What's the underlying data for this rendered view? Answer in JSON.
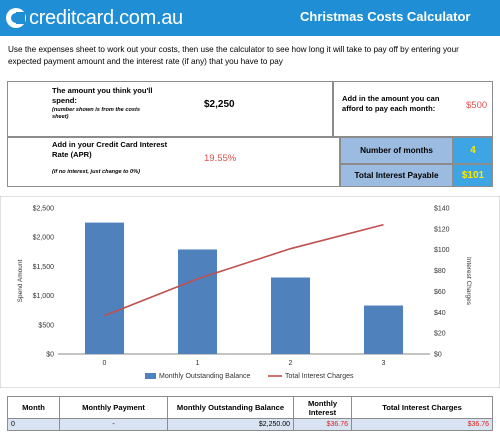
{
  "header": {
    "brand": "creditcard.com.au",
    "title": "Christmas Costs Calculator"
  },
  "intro_text": "Use the expenses sheet to work out your costs, then use the calculator to see how long it will take to pay off by entering your expected payment amount and the interest rate (if any) that you have to pay",
  "inputs": {
    "spend_label": "The amount you think you'll spend:",
    "spend_note": "(number shown is from the costs sheet)",
    "spend_value": "$2,250",
    "payment_label": "Add in the amount you can afford to pay each month:",
    "payment_value": "$500",
    "apr_label": "Add in your Credit Card Interest Rate (APR)",
    "apr_note": "(if no interest, just change to 0%)",
    "apr_value": "19.55%"
  },
  "results": {
    "months_label": "Number of months",
    "months_value": "4",
    "interest_label": "Total Interest Payable",
    "interest_value": "$101"
  },
  "chart_data": {
    "type": "bar",
    "categories": [
      "0",
      "1",
      "2",
      "3"
    ],
    "series": [
      {
        "name": "Monthly Outstanding Balance",
        "type": "bar",
        "axis": "left",
        "values": [
          2250,
          1790,
          1310,
          830
        ],
        "color": "#4f81bd"
      },
      {
        "name": "Total Interest Charges",
        "type": "line",
        "axis": "right",
        "values": [
          36.76,
          72,
          101,
          124
        ],
        "color": "#c0504d"
      }
    ],
    "y_left": {
      "label": "Spend Amount",
      "ticks": [
        "$0",
        "$500",
        "$1,000",
        "$1,500",
        "$2,000",
        "$2,500"
      ],
      "min": 0,
      "max": 2500
    },
    "y_right": {
      "label": "Interest Charges",
      "ticks": [
        "$0",
        "$20",
        "$40",
        "$60",
        "$80",
        "$100",
        "$120",
        "$140"
      ],
      "min": 0,
      "max": 140
    },
    "legend_position": "bottom"
  },
  "table": {
    "headers": [
      "Month",
      "Monthly Payment",
      "Monthly Outstanding Balance",
      "Monthly Interest",
      "Total Interest Charges"
    ],
    "rows": [
      [
        "0",
        "-",
        "$2,250.00",
        "$36.76",
        "$36.76"
      ]
    ]
  }
}
